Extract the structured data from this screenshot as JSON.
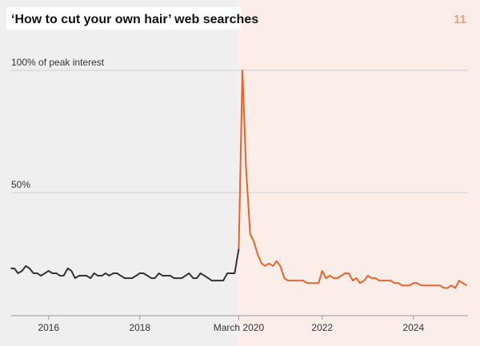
{
  "chart_data": {
    "type": "line",
    "title": "‘How to cut your own hair’ web searches",
    "page_number": "11",
    "x": [
      2015.17,
      2015.25,
      2015.33,
      2015.42,
      2015.5,
      2015.58,
      2015.67,
      2015.75,
      2015.83,
      2015.92,
      2016,
      2016.08,
      2016.17,
      2016.25,
      2016.33,
      2016.42,
      2016.5,
      2016.58,
      2016.67,
      2016.75,
      2016.83,
      2016.92,
      2017,
      2017.08,
      2017.17,
      2017.25,
      2017.33,
      2017.42,
      2017.5,
      2017.58,
      2017.67,
      2017.75,
      2017.83,
      2017.92,
      2018,
      2018.08,
      2018.17,
      2018.25,
      2018.33,
      2018.42,
      2018.5,
      2018.58,
      2018.67,
      2018.75,
      2018.83,
      2018.92,
      2019,
      2019.08,
      2019.17,
      2019.25,
      2019.33,
      2019.42,
      2019.5,
      2019.58,
      2019.67,
      2019.75,
      2019.83,
      2019.92,
      2020,
      2020.08,
      2020.17,
      2020.25,
      2020.33,
      2020.42,
      2020.5,
      2020.58,
      2020.67,
      2020.75,
      2020.83,
      2020.92,
      2021,
      2021.08,
      2021.17,
      2021.25,
      2021.33,
      2021.42,
      2021.5,
      2021.58,
      2021.67,
      2021.75,
      2021.83,
      2021.92,
      2022,
      2022.08,
      2022.17,
      2022.25,
      2022.33,
      2022.42,
      2022.5,
      2022.58,
      2022.67,
      2022.75,
      2022.83,
      2022.92,
      2023,
      2023.08,
      2023.17,
      2023.25,
      2023.33,
      2023.42,
      2023.5,
      2023.58,
      2023.67,
      2023.75,
      2023.83,
      2023.92,
      2024,
      2024.08,
      2024.17,
      2024.25,
      2024.33,
      2024.42,
      2024.5,
      2024.58,
      2024.67,
      2024.75,
      2024.83,
      2024.92,
      2025,
      2025.08,
      2025.17
    ],
    "series": [
      {
        "color": "#333333",
        "values": [
          19,
          19,
          17,
          18,
          20,
          19,
          17,
          17,
          16,
          17,
          18,
          17,
          17,
          16,
          16,
          19,
          18,
          15,
          16,
          16,
          16,
          15,
          17,
          16,
          16,
          17,
          16,
          17,
          17,
          16,
          15,
          15,
          15,
          16,
          17,
          17,
          16,
          15,
          15,
          17,
          16,
          16,
          16,
          15,
          15,
          15,
          16,
          17,
          15,
          15,
          17,
          16,
          15,
          14,
          14,
          14,
          14,
          17,
          17,
          17,
          27,
          null,
          null,
          null,
          null,
          null,
          null,
          null,
          null,
          null,
          null,
          null,
          null,
          null,
          null,
          null,
          null,
          null,
          null,
          null,
          null,
          null,
          null,
          null,
          null,
          null,
          null,
          null,
          null,
          null,
          null,
          null,
          null,
          null,
          null,
          null,
          null,
          null,
          null,
          null,
          null,
          null,
          null,
          null,
          null,
          null,
          null,
          null,
          null,
          null,
          null,
          null,
          null,
          null,
          null,
          null,
          null,
          null,
          null,
          null,
          null
        ]
      },
      {
        "color": "#e8632b",
        "values": [
          null,
          null,
          null,
          null,
          null,
          null,
          null,
          null,
          null,
          null,
          null,
          null,
          null,
          null,
          null,
          null,
          null,
          null,
          null,
          null,
          null,
          null,
          null,
          null,
          null,
          null,
          null,
          null,
          null,
          null,
          null,
          null,
          null,
          null,
          null,
          null,
          null,
          null,
          null,
          null,
          null,
          null,
          null,
          null,
          null,
          null,
          null,
          null,
          null,
          null,
          null,
          null,
          null,
          null,
          null,
          null,
          null,
          null,
          null,
          null,
          27,
          100,
          60,
          33,
          30,
          25,
          21,
          20,
          21,
          20,
          22,
          20,
          15,
          14,
          14,
          14,
          14,
          14,
          13,
          13,
          13,
          13,
          18,
          15,
          16,
          15,
          15,
          16,
          17,
          17,
          14,
          15,
          13,
          14,
          16,
          15,
          15,
          14,
          14,
          14,
          14,
          13,
          13,
          12,
          12,
          12,
          13,
          13,
          12,
          12,
          12,
          12,
          12,
          12,
          11,
          11,
          12,
          11,
          14,
          13,
          12
        ]
      }
    ],
    "xlim": [
      2015.18,
      2025.46
    ],
    "xticks": [
      2016,
      2018,
      {
        "value": 2020.17,
        "label": "March 2020"
      },
      2022,
      2024
    ],
    "ylim": [
      0,
      100
    ],
    "yticks": [
      {
        "value": 50,
        "label": "50%"
      },
      {
        "value": 100,
        "label": "100% of peak interest"
      }
    ],
    "grid": true
  }
}
